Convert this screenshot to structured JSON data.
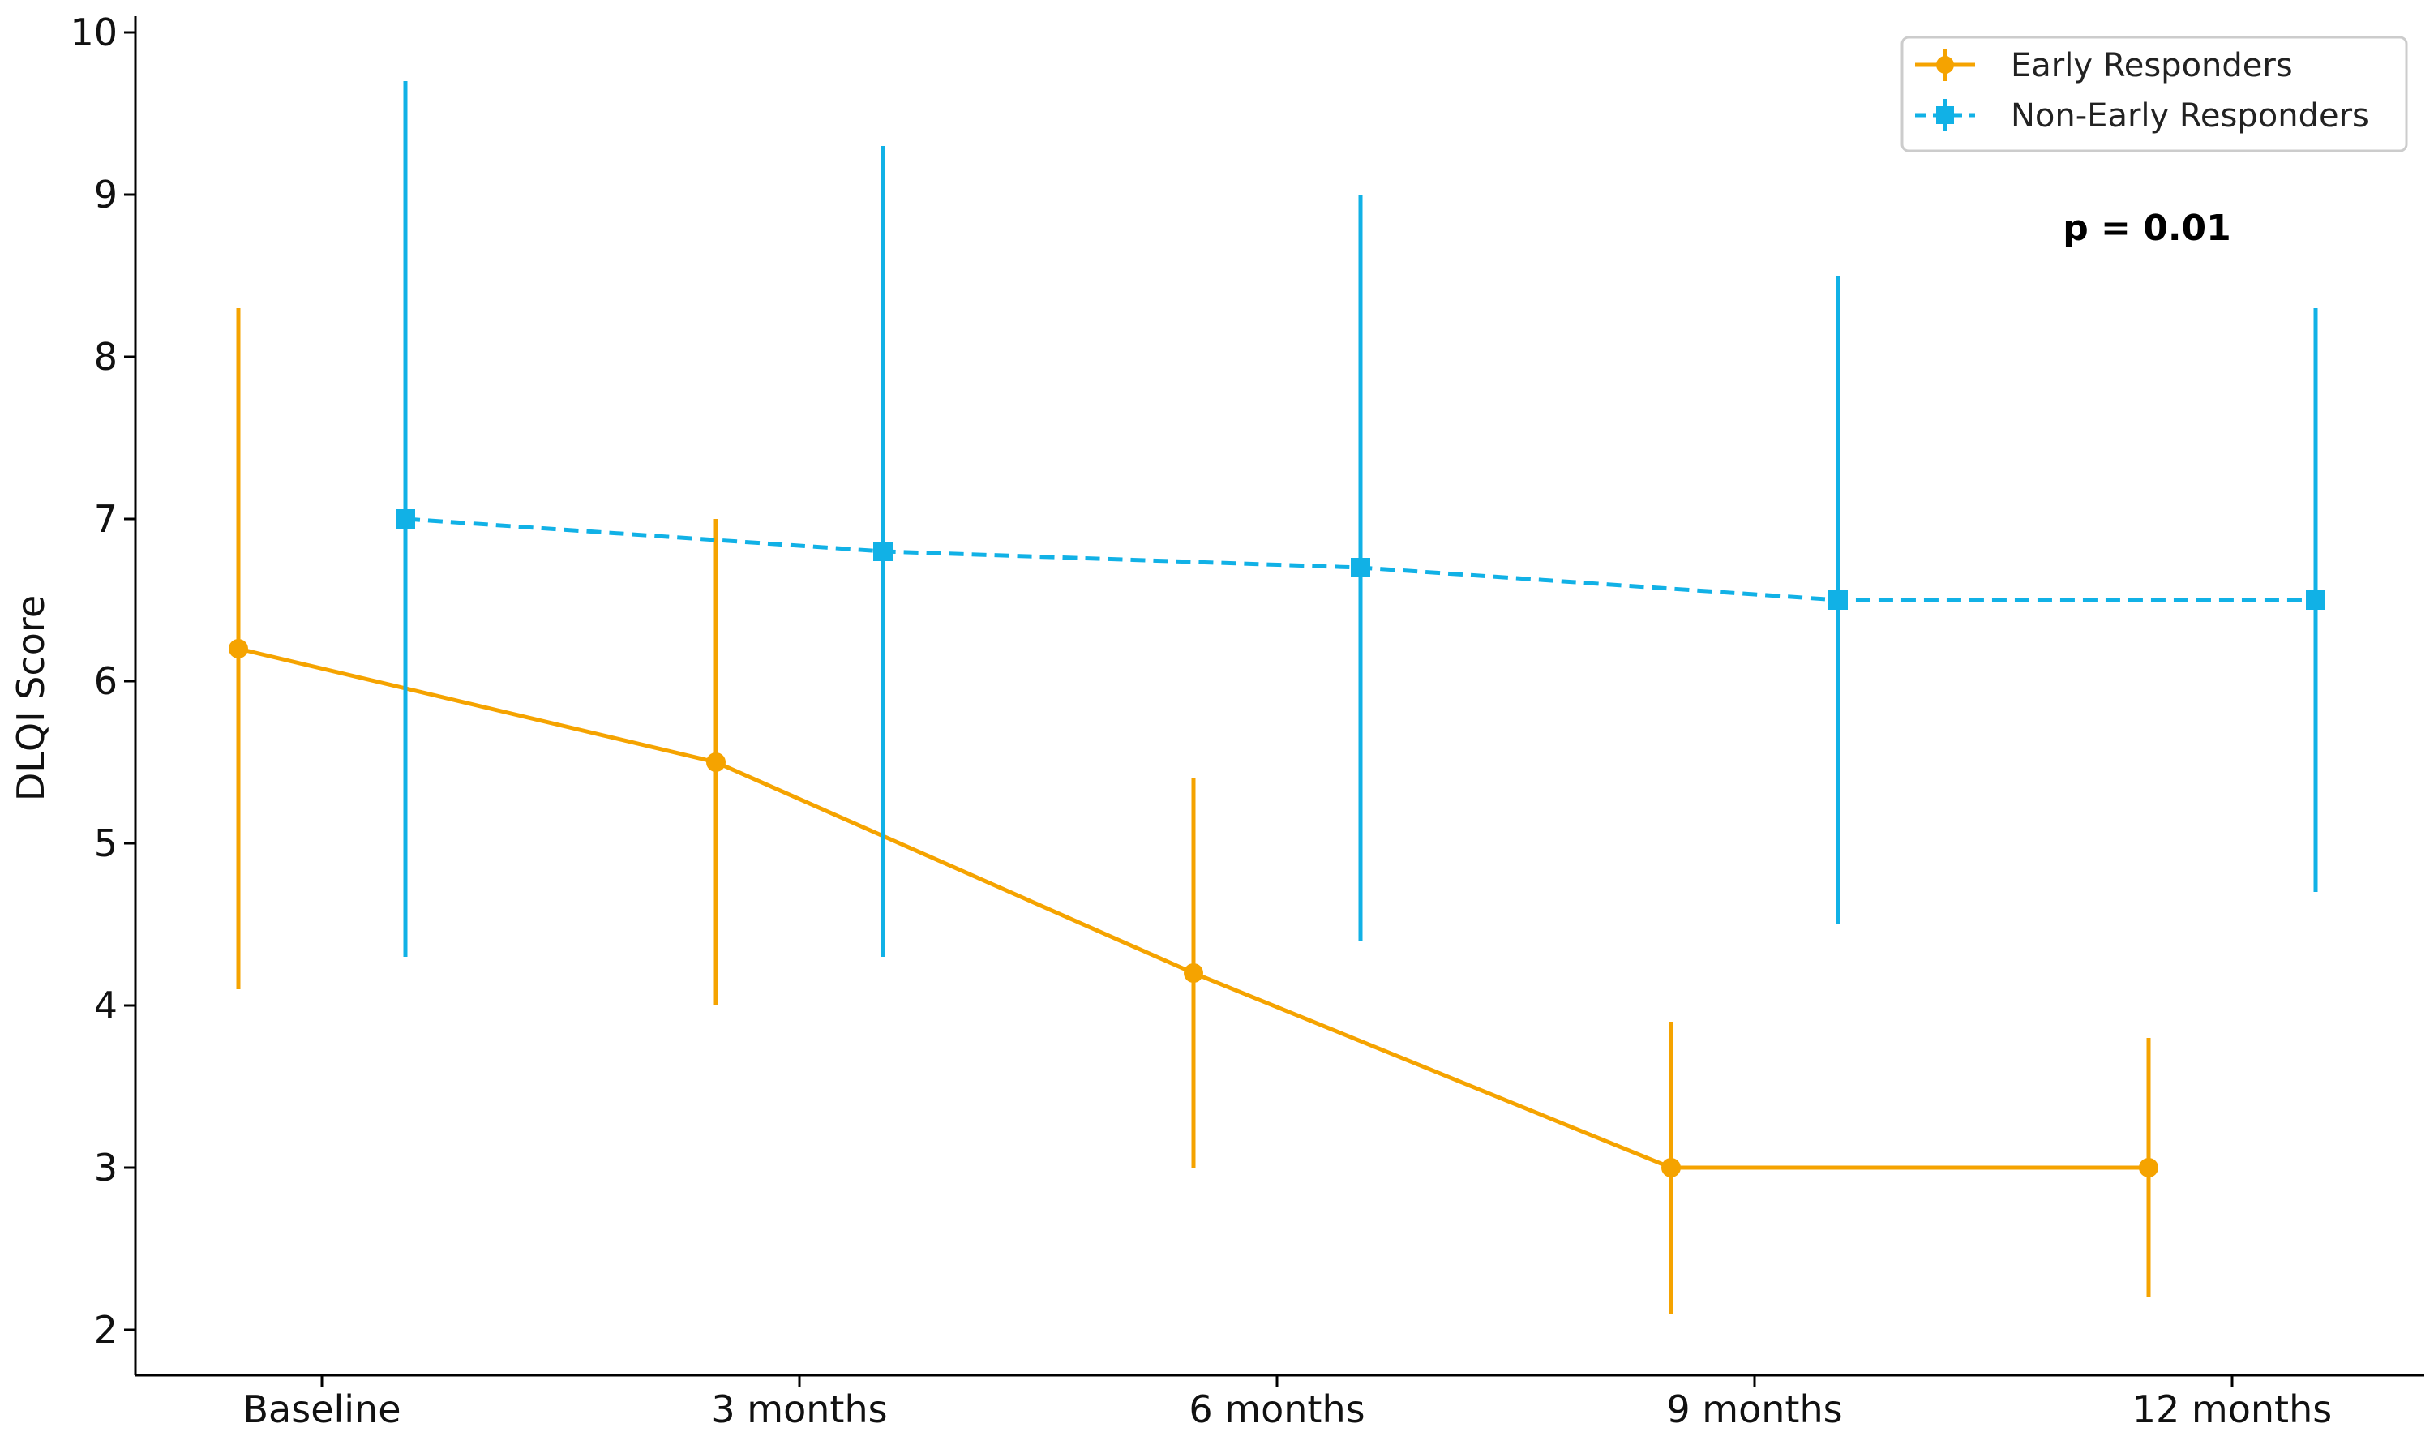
{
  "chart_data": {
    "type": "line",
    "title": "",
    "xlabel": "",
    "ylabel": "DLQI Score",
    "categories": [
      "Baseline",
      "3 months",
      "6 months",
      "9 months",
      "12 months"
    ],
    "ylim": [
      1.72,
      10.1
    ],
    "yticks": [
      2,
      3,
      4,
      5,
      6,
      7,
      8,
      9,
      10
    ],
    "grid": false,
    "legend_position": "top-right",
    "series": [
      {
        "name": "Early Responders",
        "color": "#F5A300",
        "marker": "circle",
        "line_style": "solid",
        "offset": "left",
        "values": [
          6.2,
          5.5,
          4.2,
          3.0,
          3.0
        ],
        "error_low": [
          4.1,
          4.0,
          3.0,
          2.1,
          2.2
        ],
        "error_high": [
          8.3,
          7.0,
          5.4,
          3.9,
          3.8
        ]
      },
      {
        "name": "Non-Early Responders",
        "color": "#11B1E6",
        "marker": "square",
        "line_style": "dashed",
        "offset": "right",
        "values": [
          7.0,
          6.8,
          6.7,
          6.5,
          6.5
        ],
        "error_low": [
          4.3,
          4.3,
          4.4,
          4.5,
          4.7
        ],
        "error_high": [
          9.7,
          9.3,
          9.0,
          8.5,
          8.3
        ]
      }
    ],
    "annotations": [
      {
        "text": "p = 0.01",
        "position": "top-right",
        "bold": true
      }
    ]
  }
}
